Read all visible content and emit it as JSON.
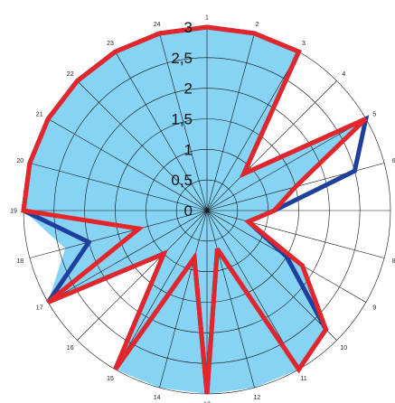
{
  "chart_data": {
    "type": "radar",
    "title": "",
    "axes": [
      "1",
      "2",
      "3",
      "4",
      "5",
      "6",
      "7",
      "8",
      "9",
      "10",
      "11",
      "12",
      "13",
      "14",
      "15",
      "16",
      "17",
      "18",
      "19",
      "20",
      "21",
      "22",
      "23",
      "24"
    ],
    "range": [
      0,
      3
    ],
    "ring_values": [
      0,
      0.5,
      1,
      1.5,
      2,
      2.5,
      3
    ],
    "ring_labels": [
      "0",
      "0,5",
      "1",
      "1,5",
      "2",
      "2,5",
      "3"
    ],
    "grid": true,
    "legend": "none",
    "series": [
      {
        "style": "filled-area",
        "color": "#87d3f4",
        "values": [
          3,
          3,
          3,
          0.85,
          3,
          1.5,
          1.1,
          0.7,
          1.8,
          2.75,
          3,
          3,
          3,
          3,
          3,
          1,
          3,
          2.4,
          3,
          3,
          3,
          3,
          3,
          3
        ]
      },
      {
        "style": "line",
        "color": "#1f3f9e",
        "values": [
          3,
          3,
          3,
          0.85,
          3,
          2.5,
          1.1,
          0.7,
          1.5,
          2.75,
          3,
          0.65,
          3,
          0.8,
          3,
          1,
          3,
          2,
          3,
          3,
          3,
          3,
          3,
          3
        ]
      },
      {
        "style": "line",
        "color": "#e3262b",
        "values": [
          3,
          3,
          3,
          0.85,
          3,
          1.5,
          1.1,
          0.7,
          1.8,
          2.75,
          3,
          0.65,
          3,
          0.8,
          3,
          1,
          3,
          1.15,
          3,
          3,
          3,
          3,
          3,
          3
        ]
      }
    ]
  }
}
